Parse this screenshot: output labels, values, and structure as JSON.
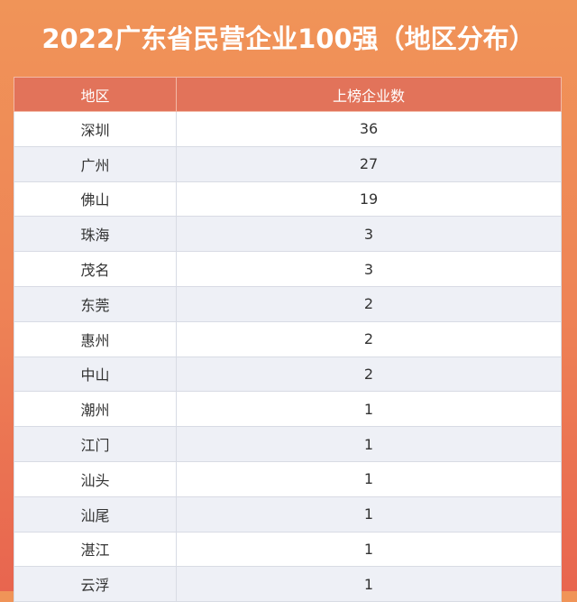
{
  "title": "2022广东省民营企业100强（地区分布）",
  "chart_data": {
    "type": "table",
    "title": "2022广东省民营企业100强（地区分布）",
    "columns": [
      "地区",
      "上榜企业数"
    ],
    "rows": [
      [
        "深圳",
        36
      ],
      [
        "广州",
        27
      ],
      [
        "佛山",
        19
      ],
      [
        "珠海",
        3
      ],
      [
        "茂名",
        3
      ],
      [
        "东莞",
        2
      ],
      [
        "惠州",
        2
      ],
      [
        "中山",
        2
      ],
      [
        "潮州",
        1
      ],
      [
        "江门",
        1
      ],
      [
        "汕头",
        1
      ],
      [
        "汕尾",
        1
      ],
      [
        "湛江",
        1
      ],
      [
        "云浮",
        1
      ]
    ]
  },
  "colors": {
    "background_top": "#f09458",
    "background_bottom": "#e8654f",
    "header": "#e2735a",
    "row_alt": "#eef0f6"
  }
}
